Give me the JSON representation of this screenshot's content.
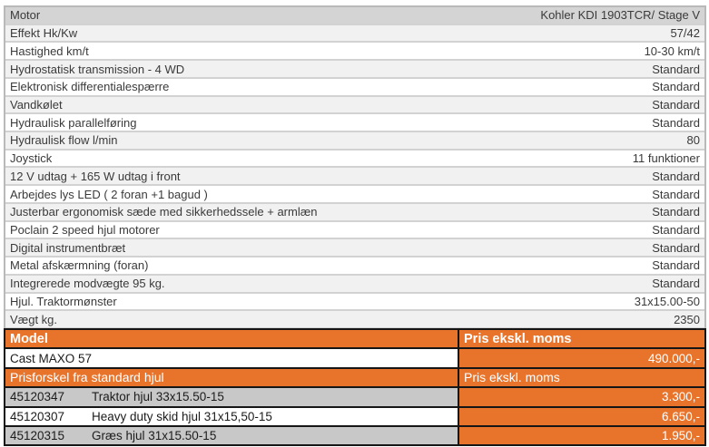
{
  "colors": {
    "accent_orange": "#e8742c",
    "wheel_row_gray": "#c8c8c8"
  },
  "spec_table": {
    "rows": [
      {
        "label": "Motor",
        "value": "Kohler KDI 1903TCR/ Stage V"
      },
      {
        "label": "Effekt Hk/Kw",
        "value": "57/42"
      },
      {
        "label": "Hastighed km/t",
        "value": "10-30 km/t"
      },
      {
        "label": "Hydrostatisk transmission - 4 WD",
        "value": "Standard"
      },
      {
        "label": "Elektronisk differentialespærre",
        "value": "Standard"
      },
      {
        "label": "Vandkølet",
        "value": "Standard"
      },
      {
        "label": "Hydraulisk parallelføring",
        "value": "Standard"
      },
      {
        "label": "Hydraulisk flow l/min",
        "value": "80"
      },
      {
        "label": "Joystick",
        "value": "11 funktioner"
      },
      {
        "label": "12 V udtag + 165 W udtag i front",
        "value": "Standard"
      },
      {
        "label": "Arbejdes lys LED ( 2 foran  +1 bagud )",
        "value": "Standard"
      },
      {
        "label": "Justerbar ergonomisk sæde med sikkerhedssele + armlæn",
        "value": "Standard"
      },
      {
        "label": "Poclain 2 speed hjul motorer",
        "value": "Standard"
      },
      {
        "label": "Digital instrumentbræt",
        "value": "Standard"
      },
      {
        "label": "Metal afskærmning (foran)",
        "value": "Standard"
      },
      {
        "label": "Integrerede modvægte 95 kg.",
        "value": "Standard"
      },
      {
        "label": "Hjul. Traktormønster",
        "value": "31x15.00-50"
      },
      {
        "label": "Vægt kg.",
        "value": "2350"
      }
    ]
  },
  "price_table": {
    "header1": {
      "label": "Model",
      "value": "Pris ekskl. moms"
    },
    "model_row": {
      "label": "Cast MAXO 57",
      "value": "490.000,-"
    },
    "header2": {
      "label": "Prisforskel fra standard hjul",
      "value": "Pris ekskl. moms"
    },
    "wheel_rows": [
      {
        "code": "45120347",
        "desc": "Traktor hjul 33x15.50-15",
        "price": "3.300,-"
      },
      {
        "code": "45120307",
        "desc": "Heavy duty skid hjul 31x15,50-15",
        "price": "6.650,-"
      },
      {
        "code": "45120315",
        "desc": "Græs hjul 31x15.50-15",
        "price": "1.950,-"
      }
    ]
  }
}
